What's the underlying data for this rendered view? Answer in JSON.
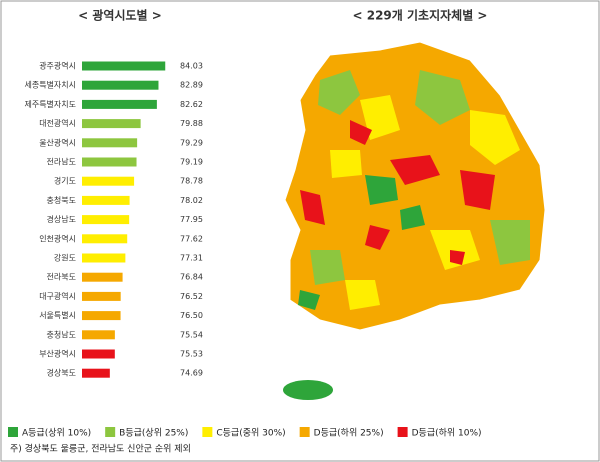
{
  "chart_data": {
    "type": "bar",
    "orientation": "horizontal",
    "title": "< 광역시도별 >",
    "map_title": "< 229개 기초지자체별 >",
    "categories": [
      "광주광역시",
      "세종특별자치시",
      "제주특별자치도",
      "대전광역시",
      "울산광역시",
      "전라남도",
      "경기도",
      "충청북도",
      "경상남도",
      "인천광역시",
      "강원도",
      "전라북도",
      "대구광역시",
      "서울특별시",
      "충청남도",
      "부산광역시",
      "경상북도"
    ],
    "values": [
      84.03,
      82.89,
      82.62,
      79.88,
      79.29,
      79.19,
      78.78,
      78.02,
      77.95,
      77.62,
      77.31,
      76.84,
      76.52,
      76.5,
      75.54,
      75.53,
      74.69
    ],
    "value_labels": [
      "84.03",
      "82.89",
      "82.62",
      "79.88",
      "79.29",
      "79.19",
      "78.78",
      "78.02",
      "77.95",
      "77.62",
      "77.31",
      "76.84",
      "76.52",
      "76.50",
      "75.54",
      "75.53",
      "74.69"
    ],
    "colors": [
      "#2ea53a",
      "#2ea53a",
      "#2ea53a",
      "#8dc63f",
      "#8dc63f",
      "#8dc63f",
      "#ffee00",
      "#ffee00",
      "#ffee00",
      "#ffee00",
      "#ffee00",
      "#f5a800",
      "#f5a800",
      "#f5a800",
      "#f5a800",
      "#e8121a",
      "#e8121a"
    ],
    "xlim": [
      70,
      85
    ],
    "legend": [
      {
        "name": "A등급(상위 10%)",
        "color": "#2ea53a"
      },
      {
        "name": "B등급(상위 25%)",
        "color": "#8dc63f"
      },
      {
        "name": "C등급(중위 30%)",
        "color": "#ffee00"
      },
      {
        "name": "D등급(하위 25%)",
        "color": "#f5a800"
      },
      {
        "name": "D등급(하위 10%)",
        "color": "#e8121a"
      }
    ],
    "note": "주) 경상북도 울릉군, 전라남도 신안군 순위 제외"
  }
}
